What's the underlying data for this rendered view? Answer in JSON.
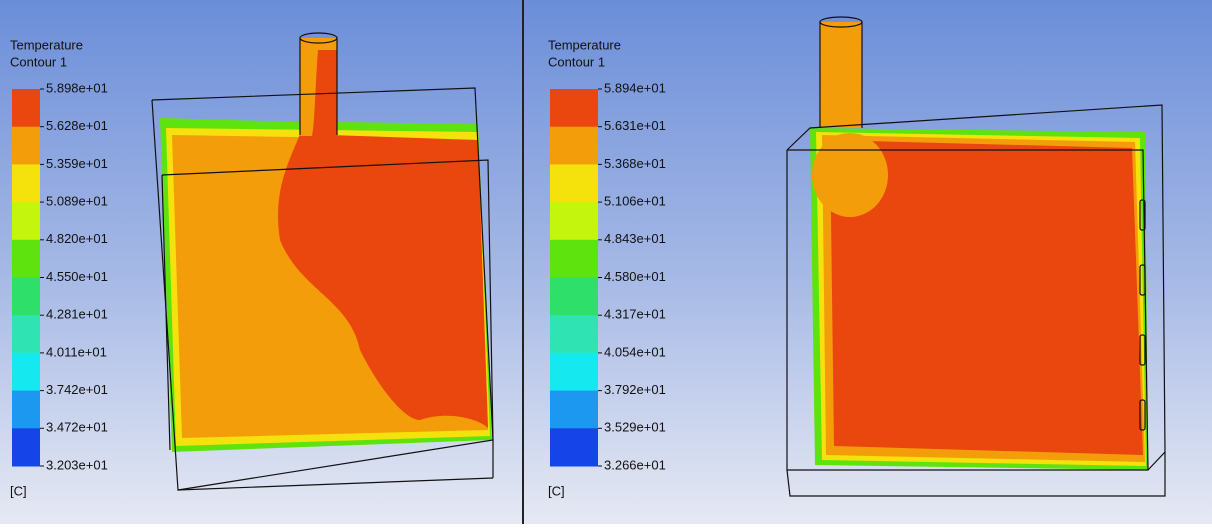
{
  "panels": [
    {
      "legend": {
        "title": [
          "Temperature",
          "Contour 1"
        ],
        "labels": [
          "5.898e+01",
          "5.628e+01",
          "5.359e+01",
          "5.089e+01",
          "4.820e+01",
          "4.550e+01",
          "4.281e+01",
          "4.011e+01",
          "3.742e+01",
          "3.472e+01",
          "3.203e+01"
        ],
        "unit": "[C]"
      }
    },
    {
      "legend": {
        "title": [
          "Temperature",
          "Contour 1"
        ],
        "labels": [
          "5.894e+01",
          "5.631e+01",
          "5.368e+01",
          "5.106e+01",
          "4.843e+01",
          "4.580e+01",
          "4.317e+01",
          "4.054e+01",
          "3.792e+01",
          "3.529e+01",
          "3.266e+01"
        ],
        "unit": "[C]"
      }
    }
  ]
}
